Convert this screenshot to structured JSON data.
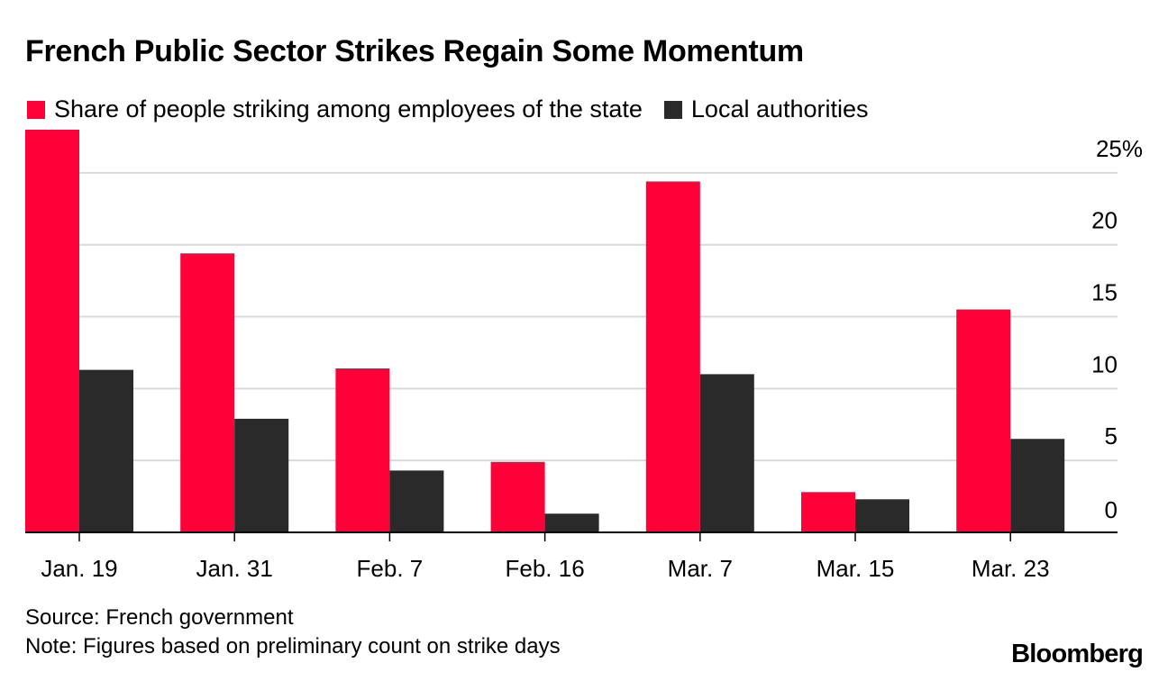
{
  "title": "French Public Sector Strikes Regain Some Momentum",
  "legend": {
    "series_a": "Share of people striking among employees of the state",
    "series_b": "Local authorities"
  },
  "colors": {
    "series_a": "#ff0038",
    "series_b": "#2a2a2a",
    "grid": "#d9d9d9",
    "axis": "#000000"
  },
  "source": "Source: French government",
  "note": "Note: Figures based on preliminary count on strike days",
  "brand": "Bloomberg",
  "chart_data": {
    "type": "bar",
    "title": "French Public Sector Strikes Regain Some Momentum",
    "categories": [
      "Jan. 19",
      "Jan. 31",
      "Feb. 7",
      "Feb. 16",
      "Mar. 7",
      "Mar. 15",
      "Mar. 23"
    ],
    "series": [
      {
        "name": "Share of people striking among employees of the state",
        "values": [
          28.0,
          19.4,
          11.4,
          4.9,
          24.4,
          2.8,
          15.5
        ]
      },
      {
        "name": "Local authorities",
        "values": [
          11.3,
          7.9,
          4.3,
          1.3,
          11.0,
          2.3,
          6.5
        ]
      }
    ],
    "ylim": [
      0,
      28
    ],
    "yticks": [
      0,
      5,
      10,
      15,
      20,
      25
    ],
    "ytick_labels": [
      "0",
      "5",
      "10",
      "15",
      "20",
      "25%"
    ],
    "xlabel": "",
    "ylabel": "",
    "grid": true,
    "legend_position": "top-left"
  }
}
